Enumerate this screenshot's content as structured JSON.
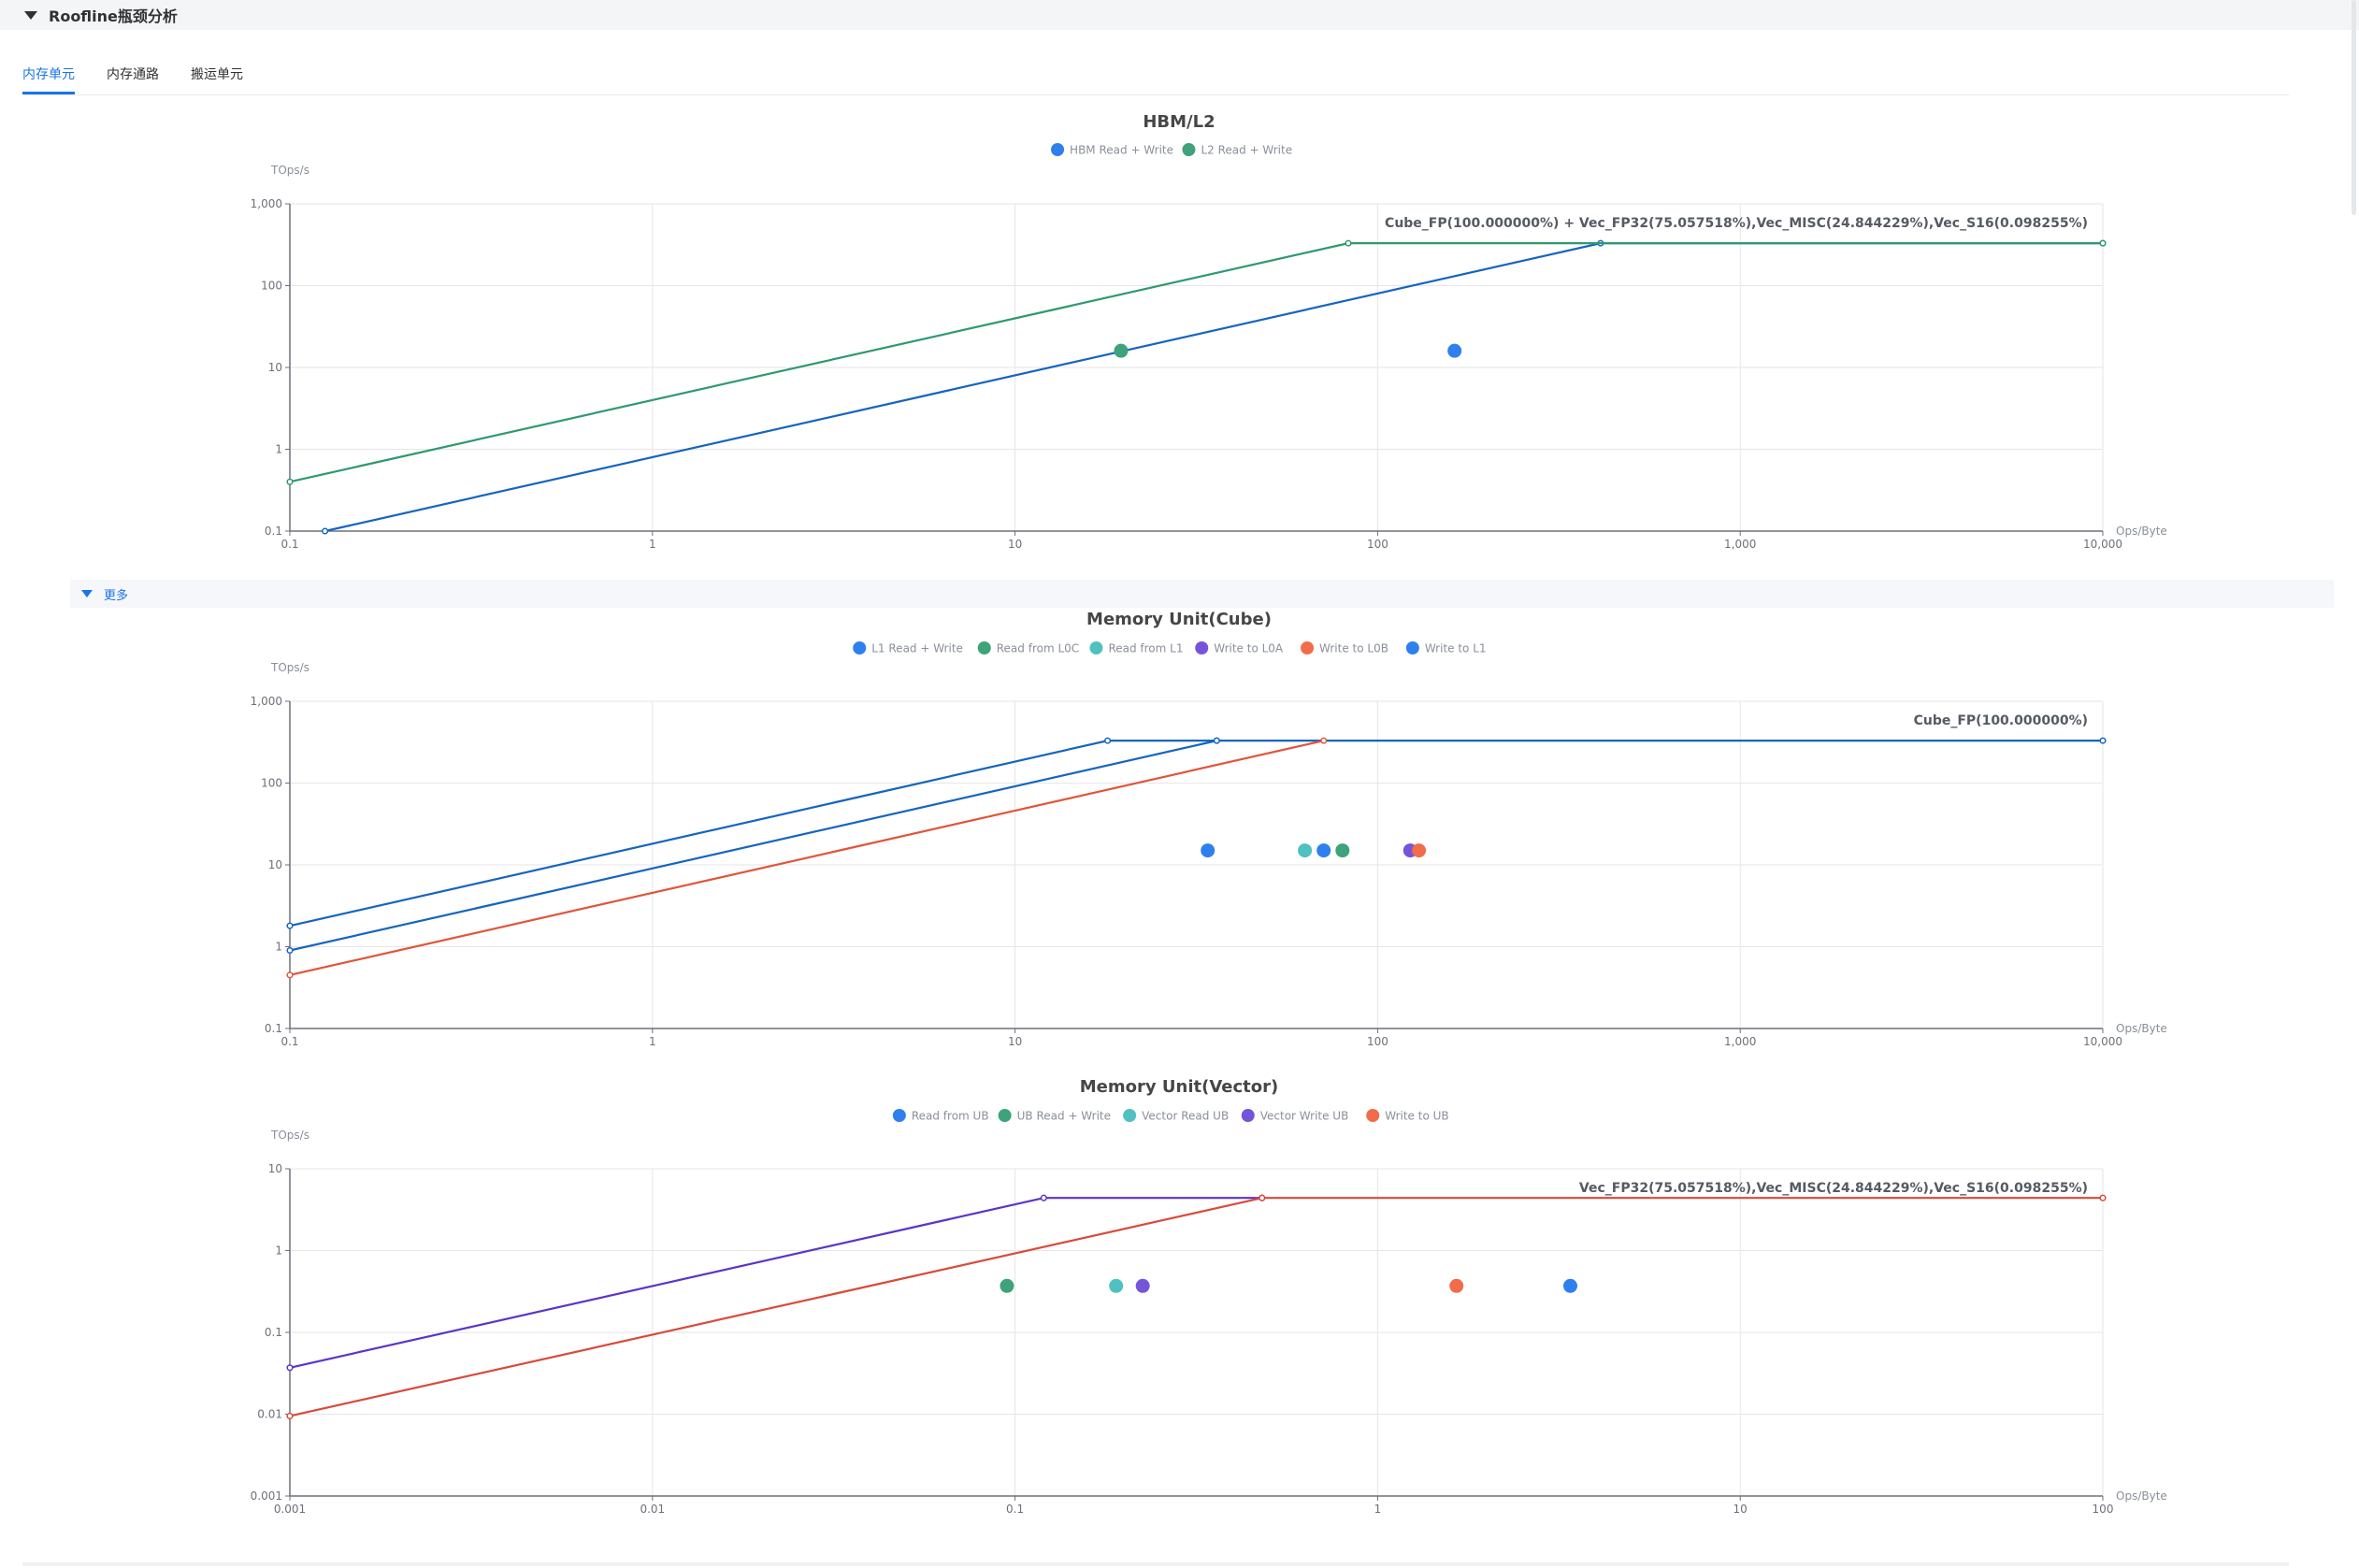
{
  "section": {
    "title": "Roofline瓶颈分析"
  },
  "tabs": [
    {
      "label": "内存单元",
      "active": true
    },
    {
      "label": "内存通路",
      "active": false
    },
    {
      "label": "搬运单元",
      "active": false
    }
  ],
  "more": {
    "label": "更多"
  },
  "chart_data": [
    {
      "type": "line",
      "title": "HBM/L2",
      "ylabel": "TOps/s",
      "xlabel": "Ops/Byte",
      "xscale": "log",
      "yscale": "log",
      "xlim": [
        0.1,
        10000
      ],
      "ylim": [
        0.1,
        1000
      ],
      "xticks": [
        "0.1",
        "1",
        "10",
        "100",
        "1,000",
        "10,000"
      ],
      "yticks": [
        "0.1",
        "1",
        "10",
        "100",
        "1,000"
      ],
      "grid": true,
      "legend_position": "top-center",
      "roof_label": "Cube_FP(100.000000%) + Vec_FP32(75.057518%),Vec_MISC(24.844229%),Vec_S16(0.098255%)",
      "series": [
        {
          "name": "HBM Read + Write",
          "color": "#2f80ed",
          "line_color": "#1565c0",
          "line": [
            [
              0.125,
              0.1
            ],
            [
              412,
              330
            ],
            [
              10000,
              330
            ]
          ],
          "point": [
            163,
            16
          ]
        },
        {
          "name": "L2 Read + Write",
          "color": "#3ea27a",
          "line_color": "#2e9a6e",
          "line": [
            [
              0.1,
              0.4
            ],
            [
              83,
              330
            ],
            [
              10000,
              330
            ]
          ],
          "point": [
            19.6,
            16
          ]
        }
      ]
    },
    {
      "type": "line",
      "title": "Memory Unit(Cube)",
      "ylabel": "TOps/s",
      "xlabel": "Ops/Byte",
      "xscale": "log",
      "yscale": "log",
      "xlim": [
        0.1,
        10000
      ],
      "ylim": [
        0.1,
        1000
      ],
      "xticks": [
        "0.1",
        "1",
        "10",
        "100",
        "1,000",
        "10,000"
      ],
      "yticks": [
        "0.1",
        "1",
        "10",
        "100",
        "1,000"
      ],
      "grid": true,
      "legend_position": "top-center",
      "roof_label": "Cube_FP(100.000000%)",
      "series": [
        {
          "name": "L1 Read + Write",
          "color": "#2f80ed",
          "line_color": "#1565c0",
          "line": [
            [
              0.1,
              0.9
            ],
            [
              36,
              330
            ],
            [
              10000,
              330
            ]
          ],
          "point": [
            34,
            15
          ]
        },
        {
          "name": "Read from L0C",
          "color": "#3ea27a",
          "point": [
            80,
            15
          ]
        },
        {
          "name": "Read from L1",
          "color": "#4fc1c1",
          "point": [
            63,
            15
          ]
        },
        {
          "name": "Write to L0A",
          "color": "#7455d9",
          "point": [
            123,
            15
          ]
        },
        {
          "name": "Write to L0B",
          "color": "#f06c4a",
          "line_color": "#e0553a",
          "line": [
            [
              0.1,
              0.45
            ],
            [
              71,
              330
            ]
          ],
          "point": [
            130,
            15
          ]
        },
        {
          "name": "Write to L1",
          "color": "#2f80ed",
          "line_color": "#1565c0",
          "line": [
            [
              0.1,
              1.8
            ],
            [
              18,
              330
            ],
            [
              36,
              330
            ]
          ],
          "point": [
            71,
            15
          ]
        }
      ]
    },
    {
      "type": "line",
      "title": "Memory Unit(Vector)",
      "ylabel": "TOps/s",
      "xlabel": "Ops/Byte",
      "xscale": "log",
      "yscale": "log",
      "xlim": [
        0.001,
        100
      ],
      "ylim": [
        0.001,
        10
      ],
      "xticks": [
        "0.001",
        "0.01",
        "0.1",
        "1",
        "10",
        "100"
      ],
      "yticks": [
        "0.001",
        "0.01",
        "0.1",
        "1",
        "10"
      ],
      "grid": true,
      "legend_position": "top-center",
      "roof_label": "Vec_FP32(75.057518%),Vec_MISC(24.844229%),Vec_S16(0.098255%)",
      "series": [
        {
          "name": "Read from UB",
          "color": "#2f80ed",
          "point": [
            3.4,
            0.37
          ]
        },
        {
          "name": "UB Read + Write",
          "color": "#3ea27a",
          "point": [
            0.095,
            0.37
          ]
        },
        {
          "name": "Vector Read UB",
          "color": "#4fc1c1",
          "point": [
            0.19,
            0.37
          ]
        },
        {
          "name": "Vector Write UB",
          "color": "#7455d9",
          "line_color": "#5a35c9",
          "line": [
            [
              0.001,
              0.037
            ],
            [
              0.12,
              4.4
            ],
            [
              0.48,
              4.4
            ]
          ],
          "point": [
            0.225,
            0.37
          ]
        },
        {
          "name": "Write to UB",
          "color": "#f06c4a",
          "line_color": "#d94a3a",
          "line": [
            [
              0.001,
              0.0095
            ],
            [
              0.48,
              4.4
            ],
            [
              100,
              4.4
            ]
          ],
          "point": [
            1.65,
            0.37
          ]
        }
      ]
    }
  ]
}
